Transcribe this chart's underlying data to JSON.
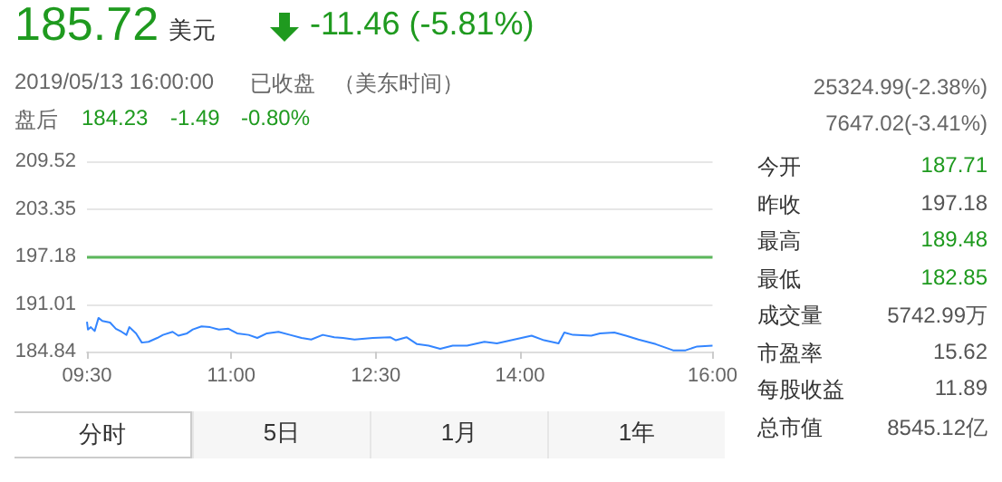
{
  "chart_data": {
    "type": "line",
    "title": "185.72",
    "annotations": [
      "美元",
      "-11.46 (-5.81%)",
      "2019/05/13 16:00:00",
      "已收盘",
      "（美东时间）",
      "盘后",
      "184.23",
      "-1.49",
      "-0.80%",
      "25324.99(-2.38%)",
      "7647.02(-3.41%)",
      "今开",
      "187.71",
      "昨收",
      "197.18",
      "最高",
      "189.48",
      "最低",
      "182.85",
      "成交量",
      "5742.99万",
      "市盈率",
      "15.62",
      "每股收益",
      "11.89",
      "总市值",
      "8545.12亿",
      "分时",
      "5日",
      "1月",
      "1年"
    ],
    "series": [
      {
        "color": "#3385ff",
        "x": [
          9.5,
          9.51,
          9.54,
          9.58,
          9.62,
          9.66,
          9.74,
          9.8,
          9.86,
          9.91,
          9.94,
          10.01,
          10.07,
          10.14,
          10.23,
          10.29,
          10.39,
          10.45,
          10.54,
          10.6,
          10.69,
          10.78,
          10.87,
          10.97,
          11.06,
          11.18,
          11.27,
          11.37,
          11.49,
          11.61,
          11.73,
          11.83,
          11.95,
          12.07,
          12.16,
          12.28,
          12.47,
          12.65,
          12.71,
          12.82,
          12.93,
          13.05,
          13.17,
          13.3,
          13.45,
          13.63,
          13.76,
          13.94,
          14.12,
          14.25,
          14.4,
          14.46,
          14.55,
          14.74,
          14.83,
          14.98,
          15.1,
          15.23,
          15.41,
          15.59,
          15.72,
          15.84,
          16.0
        ],
        "values": [
          188.7,
          187.7,
          188.0,
          187.5,
          189.2,
          188.8,
          188.6,
          187.8,
          187.4,
          187.0,
          188.0,
          187.2,
          186.0,
          186.1,
          186.6,
          187.0,
          187.4,
          186.9,
          187.2,
          187.7,
          188.1,
          188.0,
          187.7,
          187.8,
          187.2,
          187.0,
          186.6,
          187.2,
          187.4,
          187.0,
          186.6,
          186.4,
          187.0,
          186.7,
          186.6,
          186.4,
          186.6,
          186.7,
          186.3,
          186.7,
          185.8,
          185.6,
          185.2,
          185.6,
          185.6,
          186.1,
          185.9,
          186.4,
          186.9,
          186.3,
          185.9,
          187.3,
          187.0,
          186.9,
          187.2,
          187.3,
          186.9,
          186.4,
          185.8,
          185.0,
          185.0,
          185.5,
          185.6
        ]
      }
    ],
    "xlim": [
      9.5,
      16
    ],
    "xticks": [
      {
        "value": 9.5,
        "label": "09:30"
      },
      {
        "value": 11,
        "label": "11:00"
      },
      {
        "value": 12.5,
        "label": "12:30"
      },
      {
        "value": 14,
        "label": "14:00"
      },
      {
        "value": 16,
        "label": "16:00"
      }
    ],
    "ylim": [
      184.84,
      209.52
    ],
    "yticks": [
      184.84,
      191.01,
      197.18,
      203.35,
      209.52
    ],
    "ref_lines": [
      {
        "axis": "y",
        "value": 197.18,
        "color": "#5cb85c"
      }
    ],
    "grid": "y",
    "marker": "none",
    "line_style": "solid"
  }
}
